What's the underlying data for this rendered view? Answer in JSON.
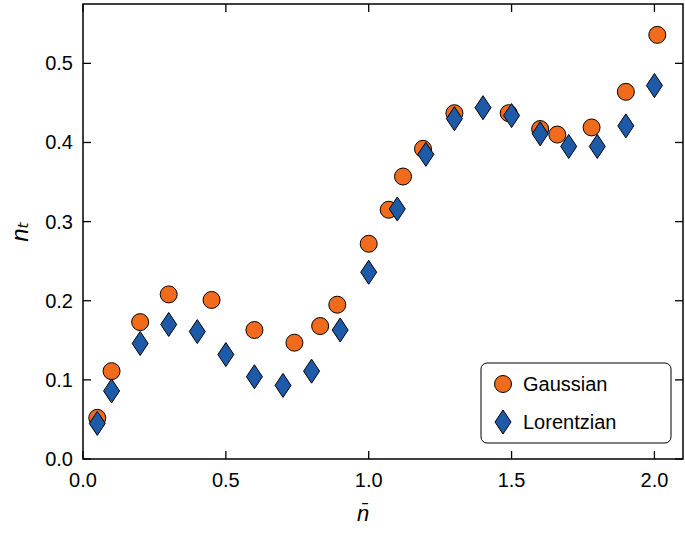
{
  "chart_data": {
    "type": "scatter",
    "x_label": "n̄",
    "y_label": "nₜ",
    "xlim": [
      0,
      2.1
    ],
    "ylim": [
      0,
      0.575
    ],
    "xticks": [
      {
        "value": 0,
        "label": "0.0"
      },
      {
        "value": 0.5,
        "label": "0.5"
      },
      {
        "value": 1,
        "label": "1.0"
      },
      {
        "value": 1.5,
        "label": "1.5"
      },
      {
        "value": 2,
        "label": "2.0"
      }
    ],
    "yticks": [
      {
        "value": 0,
        "label": "0.0"
      },
      {
        "value": 0.1,
        "label": "0.1"
      },
      {
        "value": 0.2,
        "label": "0.2"
      },
      {
        "value": 0.3,
        "label": "0.3"
      },
      {
        "value": 0.4,
        "label": "0.4"
      },
      {
        "value": 0.5,
        "label": "0.5"
      }
    ],
    "grid": false,
    "legend": "lower right",
    "series": [
      {
        "name": "Gaussian",
        "color": "#f26a1b",
        "marker": "circle",
        "x": [
          0.05,
          0.1,
          0.2,
          0.3,
          0.45,
          0.6,
          0.74,
          0.83,
          0.89,
          1.0,
          1.07,
          1.12,
          1.19,
          1.3,
          1.49,
          1.6,
          1.66,
          1.78,
          1.9,
          2.01
        ],
        "values": [
          0.052,
          0.111,
          0.173,
          0.208,
          0.201,
          0.163,
          0.147,
          0.168,
          0.195,
          0.272,
          0.315,
          0.357,
          0.392,
          0.437,
          0.437,
          0.417,
          0.41,
          0.419,
          0.464,
          0.536
        ]
      },
      {
        "name": "Lorentzian",
        "color": "#1d5aa8",
        "marker": "diamond",
        "x": [
          0.05,
          0.1,
          0.2,
          0.3,
          0.4,
          0.5,
          0.6,
          0.7,
          0.8,
          0.9,
          1.0,
          1.1,
          1.2,
          1.3,
          1.4,
          1.5,
          1.6,
          1.7,
          1.8,
          1.9,
          2.0
        ],
        "values": [
          0.045,
          0.086,
          0.146,
          0.17,
          0.161,
          0.132,
          0.104,
          0.093,
          0.111,
          0.163,
          0.236,
          0.316,
          0.385,
          0.43,
          0.444,
          0.434,
          0.411,
          0.395,
          0.395,
          0.421,
          0.472
        ]
      }
    ]
  }
}
